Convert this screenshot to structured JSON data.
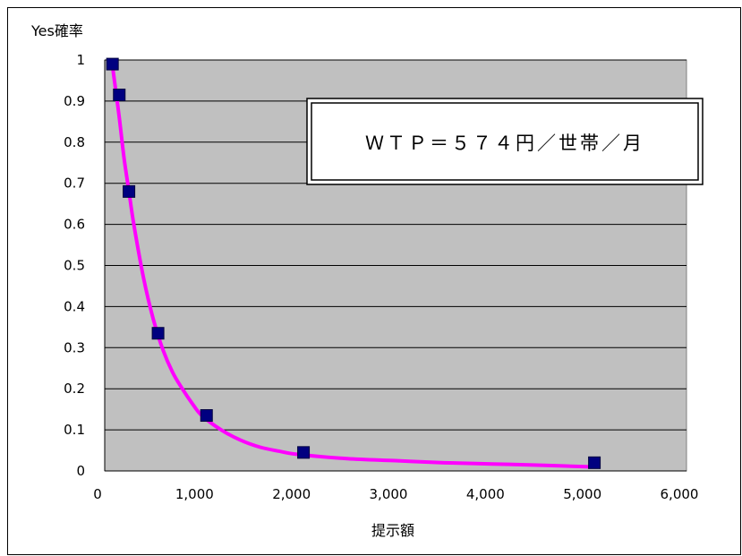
{
  "chart_data": {
    "type": "scatter",
    "title": "",
    "xlabel": "提示額",
    "ylabel": "Yes確率",
    "xlim": [
      0,
      6000
    ],
    "ylim": [
      0,
      1
    ],
    "x_ticks": [
      0,
      1000,
      2000,
      3000,
      4000,
      5000,
      6000
    ],
    "x_tick_labels": [
      "0",
      "1,000",
      "2,000",
      "3,000",
      "4,000",
      "5,000",
      "6,000"
    ],
    "y_ticks": [
      0,
      0.1,
      0.2,
      0.3,
      0.4,
      0.5,
      0.6,
      0.7,
      0.8,
      0.9,
      1
    ],
    "y_tick_labels": [
      "0",
      "0.1",
      "0.2",
      "0.3",
      "0.4",
      "0.5",
      "0.6",
      "0.7",
      "0.8",
      "0.9",
      "1"
    ],
    "grid": "horizontal",
    "plot_background": "#c0c0c0",
    "series": [
      {
        "kind": "scatter",
        "marker": "square",
        "color": "#000080",
        "x": [
          80,
          150,
          250,
          550,
          1050,
          2050,
          5050
        ],
        "y": [
          0.99,
          0.915,
          0.68,
          0.335,
          0.135,
          0.045,
          0.02
        ]
      },
      {
        "kind": "line",
        "color": "#ff00ff",
        "x": [
          80,
          100,
          150,
          200,
          250,
          300,
          400,
          500,
          600,
          700,
          800,
          900,
          1000,
          1200,
          1400,
          1600,
          1800,
          2000,
          2500,
          3000,
          3500,
          4000,
          4500,
          5000
        ],
        "y": [
          0.985,
          0.95,
          0.86,
          0.76,
          0.68,
          0.6,
          0.47,
          0.37,
          0.295,
          0.24,
          0.2,
          0.165,
          0.135,
          0.1,
          0.075,
          0.058,
          0.048,
          0.04,
          0.03,
          0.025,
          0.02,
          0.017,
          0.014,
          0.01
        ]
      }
    ],
    "annotation": {
      "text": "ＷＴＰ＝５７４円／世帯／月"
    }
  }
}
